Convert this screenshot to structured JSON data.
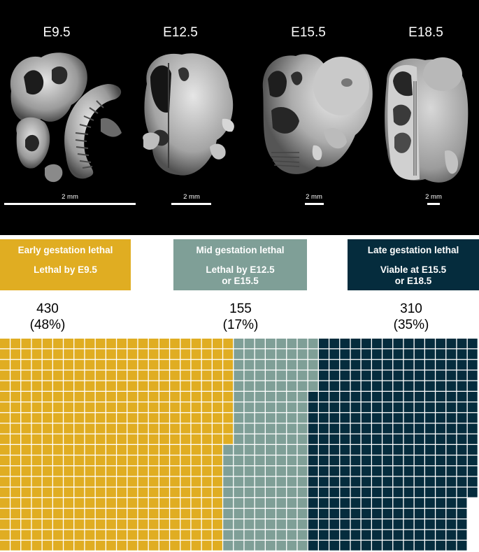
{
  "stages": [
    {
      "label": "E9.5",
      "scale_label": "2 mm"
    },
    {
      "label": "E12.5",
      "scale_label": "2 mm"
    },
    {
      "label": "E15.5",
      "scale_label": "2 mm"
    },
    {
      "label": "E18.5",
      "scale_label": "2 mm"
    }
  ],
  "categories": [
    {
      "title": "Early gestation lethal",
      "subtitle": "Lethal by E9.5",
      "count": "430",
      "percent": "(48%)",
      "color": "#e0ad22"
    },
    {
      "title": "Mid gestation lethal",
      "subtitle": "Lethal by E12.5\nor E15.5",
      "count": "155",
      "percent": "(17%)",
      "color": "#7f9f97"
    },
    {
      "title": "Late gestation lethal",
      "subtitle": "Viable at E15.5\nor E18.5",
      "count": "310",
      "percent": "(35%)",
      "color": "#052c3d"
    }
  ],
  "chart_data": {
    "type": "waffle",
    "categories": [
      "Early gestation lethal",
      "Mid gestation lethal",
      "Late gestation lethal"
    ],
    "values": [
      430,
      155,
      310
    ],
    "percent": [
      48,
      17,
      35
    ]
  }
}
